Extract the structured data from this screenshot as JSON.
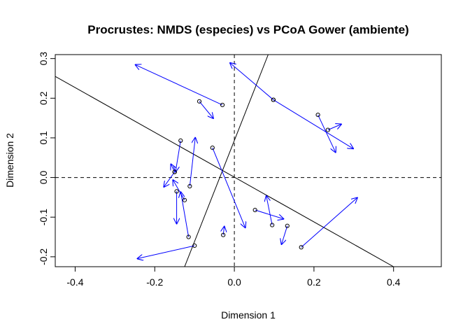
{
  "chart_data": {
    "type": "scatter",
    "title": "Procrustes: NMDS (especies) vs PCoA Gower (ambiente)",
    "xlabel": "Dimension 1",
    "ylabel": "Dimension 2",
    "xlim": [
      -0.45,
      0.52
    ],
    "ylim": [
      -0.225,
      0.31
    ],
    "x_ticks": [
      -0.4,
      -0.2,
      0.0,
      0.2,
      0.4
    ],
    "y_ticks": [
      -0.2,
      -0.1,
      0.0,
      0.1,
      0.2,
      0.3
    ],
    "x_tick_labels": [
      "-0.4",
      "-0.2",
      "0.0",
      "0.2",
      "0.4"
    ],
    "y_tick_labels": [
      "-0.2",
      "-0.1",
      "0.0",
      "0.1",
      "0.2",
      "0.3"
    ],
    "grid": false,
    "legend": "none",
    "reference_lines": {
      "horizontal_y": 0,
      "vertical_x": 0,
      "style": "dashed"
    },
    "rotation_axes": [
      {
        "x1": -0.45,
        "y1": 0.255,
        "x2": 0.4,
        "y2": -0.225
      },
      {
        "x1": -0.125,
        "y1": -0.225,
        "x2": 0.085,
        "y2": 0.31
      }
    ],
    "point_color": "#000000",
    "arrow_color": "#0000ff",
    "line_color": "#000000",
    "points": [
      {
        "x": -0.03,
        "y": 0.183,
        "tx": -0.25,
        "ty": 0.285
      },
      {
        "x": -0.088,
        "y": 0.192,
        "tx": -0.052,
        "ty": 0.148
      },
      {
        "x": 0.098,
        "y": 0.196,
        "tx": -0.012,
        "ty": 0.29
      },
      {
        "x": 0.098,
        "y": 0.196,
        "tx": 0.3,
        "ty": 0.072
      },
      {
        "x": 0.21,
        "y": 0.158,
        "tx": 0.255,
        "ty": 0.062
      },
      {
        "x": 0.235,
        "y": 0.12,
        "tx": 0.27,
        "ty": 0.135
      },
      {
        "x": -0.135,
        "y": 0.093,
        "tx": -0.148,
        "ty": 0.013
      },
      {
        "x": -0.055,
        "y": 0.075,
        "tx": 0.028,
        "ty": -0.128
      },
      {
        "x": -0.112,
        "y": -0.022,
        "tx": -0.098,
        "ty": 0.102
      },
      {
        "x": -0.15,
        "y": 0.014,
        "tx": -0.178,
        "ty": -0.025
      },
      {
        "x": -0.15,
        "y": 0.014,
        "tx": -0.16,
        "ty": 0.035
      },
      {
        "x": -0.145,
        "y": -0.035,
        "tx": -0.145,
        "ty": -0.118
      },
      {
        "x": -0.125,
        "y": -0.057,
        "tx": -0.155,
        "ty": -0.005
      },
      {
        "x": -0.115,
        "y": -0.15,
        "tx": -0.135,
        "ty": -0.035
      },
      {
        "x": -0.1,
        "y": -0.172,
        "tx": -0.245,
        "ty": -0.205
      },
      {
        "x": -0.028,
        "y": -0.145,
        "tx": -0.025,
        "ty": -0.122
      },
      {
        "x": 0.052,
        "y": -0.082,
        "tx": 0.125,
        "ty": -0.105
      },
      {
        "x": 0.095,
        "y": -0.12,
        "tx": 0.08,
        "ty": -0.045
      },
      {
        "x": 0.133,
        "y": -0.122,
        "tx": 0.118,
        "ty": -0.17
      },
      {
        "x": 0.168,
        "y": -0.176,
        "tx": 0.31,
        "ty": -0.05
      }
    ]
  }
}
